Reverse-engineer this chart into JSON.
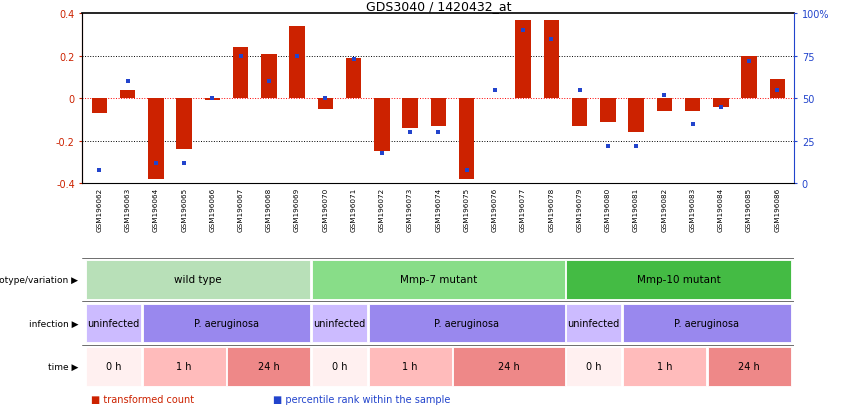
{
  "title": "GDS3040 / 1420432_at",
  "samples": [
    "GSM196062",
    "GSM196063",
    "GSM196064",
    "GSM196065",
    "GSM196066",
    "GSM196067",
    "GSM196068",
    "GSM196069",
    "GSM196070",
    "GSM196071",
    "GSM196072",
    "GSM196073",
    "GSM196074",
    "GSM196075",
    "GSM196076",
    "GSM196077",
    "GSM196078",
    "GSM196079",
    "GSM196080",
    "GSM196081",
    "GSM196082",
    "GSM196083",
    "GSM196084",
    "GSM196085",
    "GSM196086"
  ],
  "bar_values": [
    -0.07,
    0.04,
    -0.38,
    -0.24,
    -0.01,
    0.24,
    0.21,
    0.34,
    -0.05,
    0.19,
    -0.25,
    -0.14,
    -0.13,
    -0.38,
    0.0,
    0.37,
    0.37,
    -0.13,
    -0.11,
    -0.16,
    -0.06,
    -0.06,
    -0.04,
    0.2,
    0.09
  ],
  "blue_values": [
    8,
    60,
    12,
    12,
    50,
    75,
    60,
    75,
    50,
    73,
    18,
    30,
    30,
    8,
    55,
    90,
    85,
    55,
    22,
    22,
    52,
    35,
    45,
    72,
    55
  ],
  "bar_color": "#cc2200",
  "blue_color": "#2244cc",
  "ylim": [
    -0.4,
    0.4
  ],
  "y2lim": [
    0,
    100
  ],
  "yticks": [
    -0.4,
    -0.2,
    0.0,
    0.2,
    0.4
  ],
  "y2ticks": [
    0,
    25,
    50,
    75,
    100
  ],
  "genotype_groups": [
    {
      "label": "wild type",
      "start": 0,
      "end": 8,
      "color": "#b8e0b8"
    },
    {
      "label": "Mmp-7 mutant",
      "start": 8,
      "end": 17,
      "color": "#88dd88"
    },
    {
      "label": "Mmp-10 mutant",
      "start": 17,
      "end": 25,
      "color": "#44bb44"
    }
  ],
  "infection_groups": [
    {
      "label": "uninfected",
      "start": 0,
      "end": 2,
      "color": "#ccbbff"
    },
    {
      "label": "P. aeruginosa",
      "start": 2,
      "end": 8,
      "color": "#9988ee"
    },
    {
      "label": "uninfected",
      "start": 8,
      "end": 10,
      "color": "#ccbbff"
    },
    {
      "label": "P. aeruginosa",
      "start": 10,
      "end": 17,
      "color": "#9988ee"
    },
    {
      "label": "uninfected",
      "start": 17,
      "end": 19,
      "color": "#ccbbff"
    },
    {
      "label": "P. aeruginosa",
      "start": 19,
      "end": 25,
      "color": "#9988ee"
    }
  ],
  "time_groups": [
    {
      "label": "0 h",
      "start": 0,
      "end": 2,
      "color": "#fff0f0"
    },
    {
      "label": "1 h",
      "start": 2,
      "end": 5,
      "color": "#ffbbbb"
    },
    {
      "label": "24 h",
      "start": 5,
      "end": 8,
      "color": "#ee8888"
    },
    {
      "label": "0 h",
      "start": 8,
      "end": 10,
      "color": "#fff0f0"
    },
    {
      "label": "1 h",
      "start": 10,
      "end": 13,
      "color": "#ffbbbb"
    },
    {
      "label": "24 h",
      "start": 13,
      "end": 17,
      "color": "#ee8888"
    },
    {
      "label": "0 h",
      "start": 17,
      "end": 19,
      "color": "#fff0f0"
    },
    {
      "label": "1 h",
      "start": 19,
      "end": 22,
      "color": "#ffbbbb"
    },
    {
      "label": "24 h",
      "start": 22,
      "end": 25,
      "color": "#ee8888"
    }
  ],
  "row_labels": [
    "genotype/variation",
    "infection",
    "time"
  ],
  "legend_items": [
    {
      "color": "#cc2200",
      "label": "transformed count"
    },
    {
      "color": "#2244cc",
      "label": "percentile rank within the sample"
    }
  ]
}
